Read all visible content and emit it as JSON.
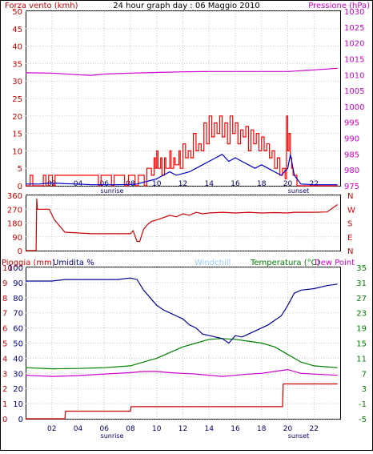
{
  "chart_data": [
    {
      "type": "line",
      "title": "24 hour graph day : 06 Maggio 2010",
      "ylabel_left": "Forza vento (kmh)",
      "ylabel_right": "Pressione (hPa)",
      "x_ticks": [
        "02",
        "04",
        "06",
        "08",
        "10",
        "12",
        "14",
        "16",
        "18",
        "20",
        "22"
      ],
      "x_markers": [
        "sunrise",
        "sunset"
      ],
      "xlim": [
        0,
        24
      ],
      "ylim_left": [
        0,
        50
      ],
      "y_ticks_left": [
        "0",
        "5",
        "10",
        "15",
        "20",
        "25",
        "30",
        "35",
        "40",
        "45",
        "50"
      ],
      "ylim_right": [
        975,
        1030
      ],
      "y_ticks_right": [
        "975",
        "980",
        "985",
        "990",
        "995",
        "1000",
        "1005",
        "1010",
        "1015",
        "1020",
        "1025",
        "1030"
      ],
      "series": [
        {
          "name": "Pressione",
          "axis": "right",
          "x": [
            0,
            2,
            4,
            5,
            6,
            8,
            10,
            12,
            14,
            16,
            18,
            20,
            22,
            23.8
          ],
          "y": [
            1010.6,
            1010.5,
            1010.0,
            1009.8,
            1010.2,
            1010.5,
            1010.7,
            1010.9,
            1011.0,
            1011.0,
            1011.0,
            1011.0,
            1011.5,
            1012.0
          ]
        },
        {
          "axis": "left",
          "x": [
            0,
            0.3,
            0.35,
            0.5,
            0.55,
            1.3,
            1.35,
            1.5,
            1.55,
            1.7,
            1.75,
            2.0,
            2.05,
            2.2,
            2.25,
            5.5,
            5.55,
            5.7,
            5.75,
            6.5,
            6.55,
            6.7,
            6.75,
            7.5,
            7.55,
            7.8,
            7.85,
            8.3,
            8.35,
            8.5,
            8.6,
            9.0,
            9.05,
            9.2,
            9.25,
            9.5,
            9.6,
            9.8,
            9.9,
            10.0,
            10.1,
            10.3,
            10.4,
            10.6,
            10.7,
            11.0,
            11.1,
            11.3,
            11.4,
            11.7,
            11.8,
            12.0,
            12.2,
            12.4,
            12.6,
            12.8,
            13.0,
            13.2,
            13.4,
            13.6,
            13.8,
            14.0,
            14.2,
            14.4,
            14.6,
            14.8,
            15.0,
            15.2,
            15.4,
            15.6,
            15.8,
            16.0,
            16.2,
            16.4,
            16.6,
            16.8,
            17.0,
            17.2,
            17.4,
            17.6,
            17.8,
            18.0,
            18.2,
            18.4,
            18.6,
            18.8,
            19.0,
            19.2,
            19.4,
            19.6,
            19.8,
            19.9,
            20.0,
            20.1,
            20.2,
            20.3,
            20.4,
            20.6,
            20.7,
            21.0,
            22.0,
            23.8
          ],
          "y": [
            0,
            0,
            3,
            3,
            0,
            0,
            3,
            3,
            0,
            0,
            3,
            3,
            0,
            0,
            3,
            3,
            0,
            0,
            3,
            3,
            0,
            0,
            3,
            3,
            0,
            0,
            3,
            3,
            0,
            0,
            3,
            3,
            0,
            0,
            5,
            5,
            3,
            8,
            5,
            10,
            5,
            8,
            3,
            8,
            5,
            10,
            5,
            8,
            6,
            10,
            5,
            12,
            8,
            10,
            8,
            15,
            10,
            12,
            10,
            18,
            12,
            20,
            14,
            18,
            15,
            20,
            14,
            18,
            12,
            20,
            15,
            18,
            12,
            16,
            14,
            17,
            10,
            16,
            12,
            15,
            10,
            14,
            10,
            12,
            8,
            10,
            5,
            8,
            3,
            5,
            2,
            20,
            10,
            15,
            8,
            5,
            3,
            3,
            0,
            0,
            0,
            0
          ]
        },
        {
          "axis": "left",
          "x": [
            0,
            1,
            2,
            3,
            4,
            5,
            6,
            7,
            8,
            8.5,
            9,
            9.5,
            10,
            10.5,
            11,
            11.5,
            12,
            12.5,
            13,
            13.5,
            14,
            14.5,
            15,
            15.5,
            16,
            16.5,
            17,
            17.5,
            18,
            18.5,
            19,
            19.5,
            20,
            20.2,
            20.5,
            21,
            22,
            23.8
          ],
          "y": [
            0.5,
            0.5,
            0.8,
            0.6,
            0.5,
            0.3,
            0.3,
            0.3,
            0.4,
            0.5,
            1,
            1.5,
            2,
            3,
            4,
            3,
            3.5,
            4,
            5,
            6,
            7,
            8,
            9,
            7,
            8,
            7,
            6,
            5,
            6,
            5,
            4,
            3,
            5,
            9,
            3,
            0.5,
            0.3,
            0.3
          ]
        }
      ]
    },
    {
      "type": "line",
      "ylabel_right": "N W S E N",
      "right_labels": [
        "N",
        "W",
        "S",
        "E",
        "N"
      ],
      "x_ticks": [
        "02",
        "04",
        "06",
        "08",
        "10",
        "12",
        "14",
        "16",
        "18",
        "20",
        "22"
      ],
      "xlim": [
        0,
        24
      ],
      "ylim": [
        0,
        360
      ],
      "y_ticks": [
        "0",
        "90",
        "180",
        "270",
        "360"
      ],
      "series": [
        {
          "axis": "left",
          "x": [
            0,
            0.8,
            0.85,
            0.9,
            1.0,
            1.8,
            2.2,
            3.0,
            5.0,
            7.0,
            8.0,
            8.2,
            8.5,
            8.7,
            9.0,
            9.3,
            9.6,
            10.0,
            10.5,
            11.0,
            11.5,
            12.0,
            12.5,
            13.0,
            13.5,
            14.0,
            15.0,
            16.0,
            17.0,
            18.0,
            19.0,
            20.0,
            20.5,
            21.0,
            22.0,
            23.0,
            23.8
          ],
          "y": [
            0,
            0,
            340,
            270,
            270,
            270,
            200,
            120,
            110,
            110,
            110,
            130,
            60,
            60,
            140,
            170,
            190,
            200,
            215,
            230,
            220,
            240,
            230,
            250,
            240,
            245,
            250,
            245,
            250,
            245,
            248,
            245,
            250,
            250,
            250,
            252,
            300
          ]
        }
      ]
    },
    {
      "type": "line",
      "ylabel_left": "Pioggia (mm)",
      "ylabel_left2": "Umidita %",
      "legend": [
        "Windchill",
        "Temperatura (°C)",
        "Dew Point"
      ],
      "x_ticks": [
        "02",
        "04",
        "06",
        "08",
        "10",
        "12",
        "14",
        "16",
        "18",
        "20",
        "22"
      ],
      "x_markers": [
        "sunrise",
        "sunset"
      ],
      "xlim": [
        0,
        24
      ],
      "ylim_left": [
        0,
        100
      ],
      "y_ticks_left_rain": [
        "0",
        "1",
        "2",
        "3",
        "4",
        "5",
        "6",
        "7",
        "8",
        "9",
        "10"
      ],
      "y_ticks_left_hum": [
        "0",
        "10",
        "20",
        "30",
        "40",
        "50",
        "60",
        "70",
        "80",
        "90",
        "100"
      ],
      "ylim_right": [
        -5,
        35
      ],
      "y_ticks_right": [
        "-5",
        "-1",
        "3",
        "7",
        "11",
        "15",
        "19",
        "23",
        "27",
        "31",
        "35"
      ],
      "series": [
        {
          "name": "Umidita %",
          "axis": "left",
          "x": [
            0,
            1,
            2,
            3,
            4,
            5,
            6,
            7,
            8,
            8.5,
            9,
            9.5,
            10,
            10.5,
            11,
            11.5,
            12,
            12.5,
            13,
            13.5,
            14,
            14.5,
            15,
            15.5,
            16,
            16.5,
            17,
            17.5,
            18,
            18.5,
            19,
            19.5,
            19.8,
            20,
            20.5,
            21,
            22,
            23,
            23.8
          ],
          "y": [
            91,
            91,
            91,
            92,
            92,
            92,
            92,
            92,
            93,
            92,
            85,
            80,
            75,
            72,
            70,
            68,
            66,
            62,
            60,
            56,
            55,
            54,
            53,
            50,
            55,
            54,
            56,
            58,
            60,
            62,
            65,
            68,
            72,
            75,
            83,
            85,
            86,
            88,
            89
          ]
        },
        {
          "name": "Temperatura (°C)",
          "axis": "right",
          "x": [
            0,
            2,
            4,
            6,
            8,
            9,
            10,
            11,
            12,
            13,
            14,
            15,
            16,
            17,
            18,
            19,
            20,
            21,
            22,
            23.8
          ],
          "y": [
            8.5,
            8.2,
            8.3,
            8.5,
            9,
            10,
            11,
            12.5,
            14,
            15,
            16,
            16.2,
            16,
            15.5,
            15,
            14,
            12,
            10,
            9,
            8.5
          ]
        },
        {
          "name": "Dew Point",
          "axis": "right",
          "x": [
            0,
            2,
            4,
            6,
            8,
            9,
            10,
            11,
            12,
            13,
            14,
            15,
            16,
            17,
            18,
            19,
            20,
            21,
            22,
            23.8
          ],
          "y": [
            6.5,
            6.2,
            6.4,
            6.8,
            7.2,
            7.5,
            7.5,
            7.2,
            7.0,
            6.8,
            6.5,
            6.2,
            6.5,
            6.8,
            7.0,
            7.5,
            8.0,
            7.0,
            6.8,
            6.5
          ]
        },
        {
          "name": "Pioggia (mm)",
          "axis": "left",
          "x": [
            0,
            3,
            3.05,
            8,
            8.05,
            19.6,
            19.65,
            23.8
          ],
          "y": [
            0,
            0,
            0.5,
            0.5,
            0.8,
            0.8,
            2.3,
            2.3
          ]
        }
      ]
    }
  ]
}
